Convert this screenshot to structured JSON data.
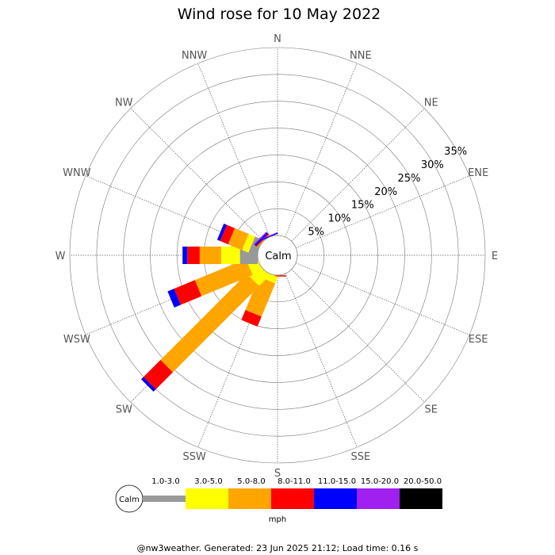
{
  "chart_data": {
    "type": "wind-rose",
    "title": "Wind rose for 10 May 2022",
    "directions": [
      "N",
      "NNE",
      "NE",
      "ENE",
      "E",
      "ESE",
      "SE",
      "SSE",
      "S",
      "SSW",
      "SW",
      "WSW",
      "W",
      "WNW",
      "NW",
      "NNW"
    ],
    "ring_labels": [
      "5%",
      "10%",
      "15%",
      "20%",
      "25%",
      "30%",
      "35%"
    ],
    "ring_values": [
      5,
      10,
      15,
      20,
      25,
      30,
      35
    ],
    "r_max": 35,
    "calm_label": "Calm",
    "speed_bins": [
      {
        "label": "1.0-3.0",
        "color": "#999999"
      },
      {
        "label": "3.0-5.0",
        "color": "#ffff00"
      },
      {
        "label": "5.0-8.0",
        "color": "#ffa500"
      },
      {
        "label": "8.0-11.0",
        "color": "#ff0000"
      },
      {
        "label": "11.0-15.0",
        "color": "#0000ff"
      },
      {
        "label": "15.0-20.0",
        "color": "#a020f0"
      },
      {
        "label": "20.0-50.0",
        "color": "#000000"
      }
    ],
    "unit_label": "mph",
    "series": [
      {
        "direction": "S",
        "segments": [
          0.05,
          0.0,
          0.0,
          0.2,
          0.0,
          0.0,
          0.0
        ]
      },
      {
        "direction": "SSW",
        "segments": [
          0.0,
          1.3,
          6.7,
          2.0,
          0.0,
          0.0,
          0.0
        ]
      },
      {
        "direction": "SW",
        "segments": [
          0.0,
          2.8,
          22.7,
          4.5,
          0.6,
          0.0,
          0.0
        ]
      },
      {
        "direction": "WSW",
        "segments": [
          0.0,
          2.0,
          10.3,
          4.2,
          1.3,
          0.0,
          0.0
        ]
      },
      {
        "direction": "W",
        "segments": [
          3.3,
          3.5,
          4.0,
          2.3,
          0.9,
          0.0,
          0.0
        ]
      },
      {
        "direction": "WNW",
        "segments": [
          1.5,
          1.3,
          2.8,
          1.6,
          0.6,
          0.0,
          0.0
        ]
      },
      {
        "direction": "NW",
        "segments": [
          0.0,
          0.0,
          0.2,
          0.2,
          0.3,
          0.2,
          0.0
        ]
      },
      {
        "direction": "NNW",
        "segments": [
          0.0,
          0.0,
          0.0,
          0.0,
          0.2,
          0.1,
          0.0
        ]
      }
    ]
  },
  "footer": "@nw3weather. Generated: 23 Jun 2025 21:12; Load time: 0.16 s"
}
